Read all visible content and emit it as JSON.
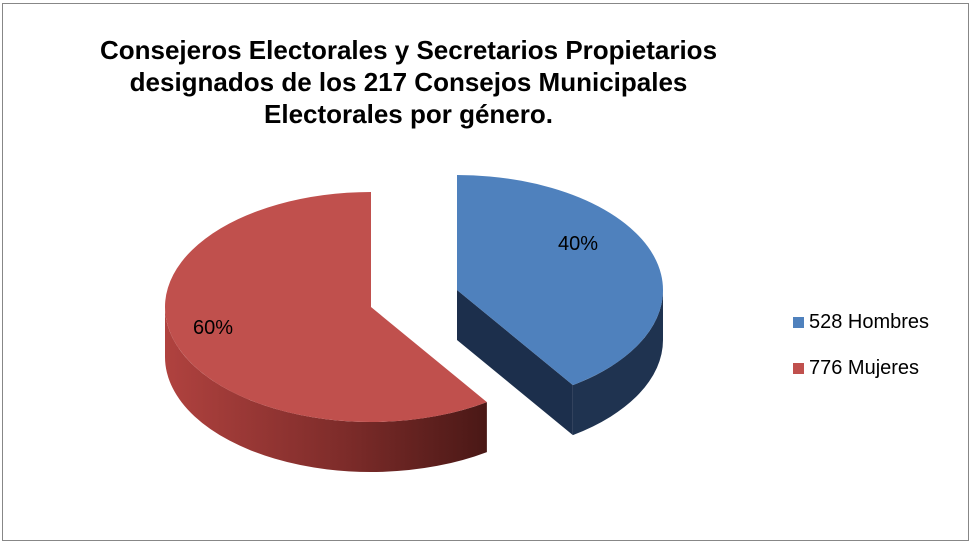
{
  "chart_data": {
    "type": "pie",
    "title": "Consejeros Electorales y Secretarios Propietarios\ndesignados de los 217 Consejos Municipales\nElectorales por género.",
    "style": "3d-exploded",
    "legend_position": "right",
    "slices": [
      {
        "label": "528 Hombres",
        "value": 528,
        "percent_label": "40%",
        "color": "#4f81bd",
        "side_color": "#1f3350"
      },
      {
        "label": "776 Mujeres",
        "value": 776,
        "percent_label": "60%",
        "color": "#c0504d",
        "side_color": "#7a2a28"
      }
    ]
  }
}
